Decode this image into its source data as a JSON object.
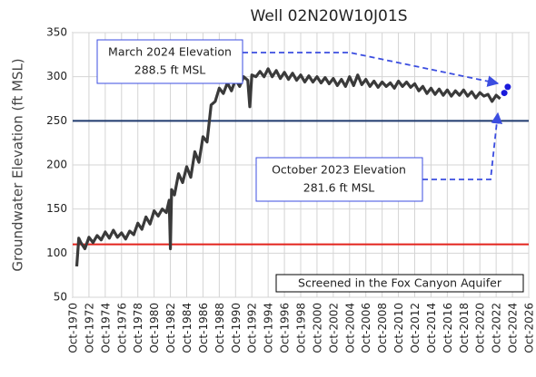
{
  "chart_data": {
    "type": "line",
    "title": "Well 02N20W10J01S",
    "y_label": "Groundwater Elevation (ft MSL)",
    "xlim": [
      1970.75,
      2026.75
    ],
    "ylim": [
      50,
      350
    ],
    "yticks": [
      50,
      100,
      150,
      200,
      250,
      300,
      350
    ],
    "xticks": [
      {
        "value": 1970.75,
        "label": "Oct-1970"
      },
      {
        "value": 1972.75,
        "label": "Oct-1972"
      },
      {
        "value": 1974.75,
        "label": "Oct-1974"
      },
      {
        "value": 1976.75,
        "label": "Oct-1976"
      },
      {
        "value": 1978.75,
        "label": "Oct-1978"
      },
      {
        "value": 1980.75,
        "label": "Oct-1980"
      },
      {
        "value": 1982.75,
        "label": "Oct-1982"
      },
      {
        "value": 1984.75,
        "label": "Oct-1984"
      },
      {
        "value": 1986.75,
        "label": "Oct-1986"
      },
      {
        "value": 1988.75,
        "label": "Oct-1988"
      },
      {
        "value": 1990.75,
        "label": "Oct-1990"
      },
      {
        "value": 1992.75,
        "label": "Oct-1992"
      },
      {
        "value": 1994.75,
        "label": "Oct-1994"
      },
      {
        "value": 1996.75,
        "label": "Oct-1996"
      },
      {
        "value": 1998.75,
        "label": "Oct-1998"
      },
      {
        "value": 2000.75,
        "label": "Oct-2000"
      },
      {
        "value": 2002.75,
        "label": "Oct-2002"
      },
      {
        "value": 2004.75,
        "label": "Oct-2004"
      },
      {
        "value": 2006.75,
        "label": "Oct-2006"
      },
      {
        "value": 2008.75,
        "label": "Oct-2008"
      },
      {
        "value": 2010.75,
        "label": "Oct-2010"
      },
      {
        "value": 2012.75,
        "label": "Oct-2012"
      },
      {
        "value": 2014.75,
        "label": "Oct-2014"
      },
      {
        "value": 2016.75,
        "label": "Oct-2016"
      },
      {
        "value": 2018.75,
        "label": "Oct-2018"
      },
      {
        "value": 2020.75,
        "label": "Oct-2020"
      },
      {
        "value": 2022.75,
        "label": "Oct-2022"
      },
      {
        "value": 2024.75,
        "label": "Oct-2024"
      },
      {
        "value": 2026.75,
        "label": "Oct-2026"
      }
    ],
    "grid": true,
    "color": "#3a3a3a",
    "x": [
      1971.25,
      1971.5,
      1971.75,
      1972.25,
      1972.75,
      1973.25,
      1973.75,
      1974.25,
      1974.75,
      1975.25,
      1975.75,
      1976.25,
      1976.75,
      1977.25,
      1977.75,
      1978.25,
      1978.75,
      1979.25,
      1979.75,
      1980.25,
      1980.75,
      1981.25,
      1981.75,
      1982.25,
      1982.6,
      1982.75,
      1982.9,
      1983.25,
      1983.75,
      1984.25,
      1984.75,
      1985.25,
      1985.75,
      1986.25,
      1986.75,
      1987.25,
      1987.75,
      1988.25,
      1988.75,
      1989.25,
      1989.75,
      1990.25,
      1990.75,
      1991.25,
      1991.75,
      1992.25,
      1992.5,
      1992.75,
      1993.25,
      1993.75,
      1994.25,
      1994.75,
      1995.25,
      1995.75,
      1996.25,
      1996.75,
      1997.25,
      1997.75,
      1998.25,
      1998.75,
      1999.25,
      1999.75,
      2000.25,
      2000.75,
      2001.25,
      2001.75,
      2002.25,
      2002.75,
      2003.25,
      2003.75,
      2004.25,
      2004.75,
      2005.25,
      2005.75,
      2006.25,
      2006.75,
      2007.25,
      2007.75,
      2008.25,
      2008.75,
      2009.25,
      2009.75,
      2010.25,
      2010.75,
      2011.25,
      2011.75,
      2012.25,
      2012.75,
      2013.25,
      2013.75,
      2014.25,
      2014.75,
      2015.25,
      2015.75,
      2016.25,
      2016.75,
      2017.25,
      2017.75,
      2018.25,
      2018.75,
      2019.25,
      2019.75,
      2020.25,
      2020.75,
      2021.25,
      2021.75,
      2022.25,
      2022.75,
      2023.25
    ],
    "values": [
      85,
      117,
      112,
      105,
      118,
      112,
      120,
      115,
      124,
      117,
      126,
      118,
      123,
      116,
      125,
      121,
      134,
      127,
      141,
      133,
      148,
      142,
      150,
      146,
      160,
      105,
      172,
      166,
      190,
      180,
      198,
      186,
      215,
      203,
      232,
      226,
      268,
      272,
      287,
      281,
      293,
      284,
      297,
      289,
      300,
      296,
      266,
      302,
      300,
      306,
      300,
      309,
      300,
      307,
      298,
      305,
      297,
      304,
      296,
      302,
      294,
      301,
      294,
      300,
      293,
      299,
      292,
      298,
      290,
      297,
      289,
      300,
      290,
      302,
      291,
      297,
      289,
      295,
      288,
      294,
      289,
      293,
      287,
      295,
      289,
      294,
      288,
      292,
      284,
      289,
      281,
      287,
      280,
      286,
      279,
      285,
      278,
      284,
      279,
      285,
      278,
      283,
      276,
      282,
      278,
      280,
      272,
      279,
      275
    ],
    "highlight": {
      "color": "#1a1adb",
      "x": [
        2023.75,
        2024.17
      ],
      "values": [
        281.6,
        288.5
      ]
    },
    "hlines": [
      {
        "value": 250,
        "color": "#1f3a6e"
      },
      {
        "value": 110,
        "color": "#e3231c"
      }
    ],
    "annotations": [
      {
        "lines": [
          "March 2024 Elevation",
          "288.5 ft MSL"
        ]
      },
      {
        "lines": [
          "October 2023 Elevation",
          "281.6 ft MSL"
        ]
      }
    ],
    "note": "Screened in the Fox Canyon Aquifer"
  }
}
